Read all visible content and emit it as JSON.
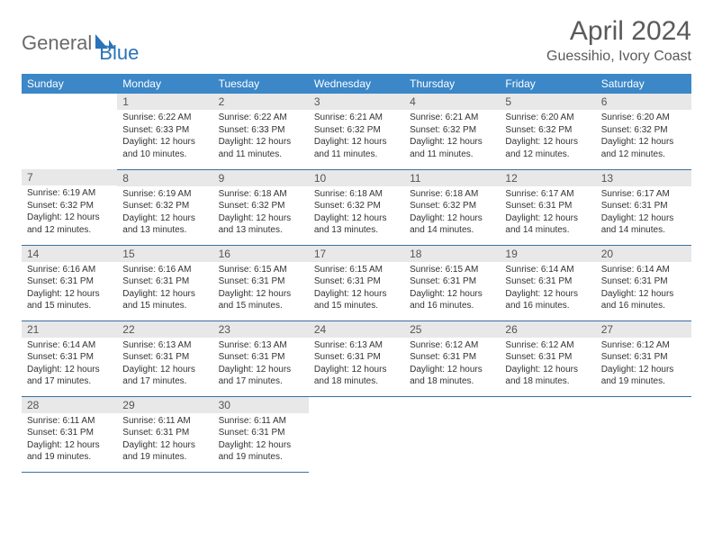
{
  "brand": {
    "part1": "General",
    "part2": "Blue"
  },
  "title": "April 2024",
  "location": "Guessihio, Ivory Coast",
  "colors": {
    "header_bg": "#3b87c8",
    "header_text": "#ffffff",
    "daynum_bg": "#e8e8e8",
    "row_border": "#3b6fa0",
    "logo_gray": "#6a6a6a",
    "logo_blue": "#2a73b8",
    "body_text": "#333333",
    "title_text": "#5a5a5a"
  },
  "day_headers": [
    "Sunday",
    "Monday",
    "Tuesday",
    "Wednesday",
    "Thursday",
    "Friday",
    "Saturday"
  ],
  "weeks": [
    [
      null,
      {
        "n": "1",
        "sr": "6:22 AM",
        "ss": "6:33 PM",
        "dl": "12 hours and 10 minutes."
      },
      {
        "n": "2",
        "sr": "6:22 AM",
        "ss": "6:33 PM",
        "dl": "12 hours and 11 minutes."
      },
      {
        "n": "3",
        "sr": "6:21 AM",
        "ss": "6:32 PM",
        "dl": "12 hours and 11 minutes."
      },
      {
        "n": "4",
        "sr": "6:21 AM",
        "ss": "6:32 PM",
        "dl": "12 hours and 11 minutes."
      },
      {
        "n": "5",
        "sr": "6:20 AM",
        "ss": "6:32 PM",
        "dl": "12 hours and 12 minutes."
      },
      {
        "n": "6",
        "sr": "6:20 AM",
        "ss": "6:32 PM",
        "dl": "12 hours and 12 minutes."
      }
    ],
    [
      {
        "n": "7",
        "sr": "6:19 AM",
        "ss": "6:32 PM",
        "dl": "12 hours and 12 minutes."
      },
      {
        "n": "8",
        "sr": "6:19 AM",
        "ss": "6:32 PM",
        "dl": "12 hours and 13 minutes."
      },
      {
        "n": "9",
        "sr": "6:18 AM",
        "ss": "6:32 PM",
        "dl": "12 hours and 13 minutes."
      },
      {
        "n": "10",
        "sr": "6:18 AM",
        "ss": "6:32 PM",
        "dl": "12 hours and 13 minutes."
      },
      {
        "n": "11",
        "sr": "6:18 AM",
        "ss": "6:32 PM",
        "dl": "12 hours and 14 minutes."
      },
      {
        "n": "12",
        "sr": "6:17 AM",
        "ss": "6:31 PM",
        "dl": "12 hours and 14 minutes."
      },
      {
        "n": "13",
        "sr": "6:17 AM",
        "ss": "6:31 PM",
        "dl": "12 hours and 14 minutes."
      }
    ],
    [
      {
        "n": "14",
        "sr": "6:16 AM",
        "ss": "6:31 PM",
        "dl": "12 hours and 15 minutes."
      },
      {
        "n": "15",
        "sr": "6:16 AM",
        "ss": "6:31 PM",
        "dl": "12 hours and 15 minutes."
      },
      {
        "n": "16",
        "sr": "6:15 AM",
        "ss": "6:31 PM",
        "dl": "12 hours and 15 minutes."
      },
      {
        "n": "17",
        "sr": "6:15 AM",
        "ss": "6:31 PM",
        "dl": "12 hours and 15 minutes."
      },
      {
        "n": "18",
        "sr": "6:15 AM",
        "ss": "6:31 PM",
        "dl": "12 hours and 16 minutes."
      },
      {
        "n": "19",
        "sr": "6:14 AM",
        "ss": "6:31 PM",
        "dl": "12 hours and 16 minutes."
      },
      {
        "n": "20",
        "sr": "6:14 AM",
        "ss": "6:31 PM",
        "dl": "12 hours and 16 minutes."
      }
    ],
    [
      {
        "n": "21",
        "sr": "6:14 AM",
        "ss": "6:31 PM",
        "dl": "12 hours and 17 minutes."
      },
      {
        "n": "22",
        "sr": "6:13 AM",
        "ss": "6:31 PM",
        "dl": "12 hours and 17 minutes."
      },
      {
        "n": "23",
        "sr": "6:13 AM",
        "ss": "6:31 PM",
        "dl": "12 hours and 17 minutes."
      },
      {
        "n": "24",
        "sr": "6:13 AM",
        "ss": "6:31 PM",
        "dl": "12 hours and 18 minutes."
      },
      {
        "n": "25",
        "sr": "6:12 AM",
        "ss": "6:31 PM",
        "dl": "12 hours and 18 minutes."
      },
      {
        "n": "26",
        "sr": "6:12 AM",
        "ss": "6:31 PM",
        "dl": "12 hours and 18 minutes."
      },
      {
        "n": "27",
        "sr": "6:12 AM",
        "ss": "6:31 PM",
        "dl": "12 hours and 19 minutes."
      }
    ],
    [
      {
        "n": "28",
        "sr": "6:11 AM",
        "ss": "6:31 PM",
        "dl": "12 hours and 19 minutes."
      },
      {
        "n": "29",
        "sr": "6:11 AM",
        "ss": "6:31 PM",
        "dl": "12 hours and 19 minutes."
      },
      {
        "n": "30",
        "sr": "6:11 AM",
        "ss": "6:31 PM",
        "dl": "12 hours and 19 minutes."
      },
      null,
      null,
      null,
      null
    ]
  ],
  "labels": {
    "sunrise": "Sunrise:",
    "sunset": "Sunset:",
    "daylight": "Daylight:"
  }
}
